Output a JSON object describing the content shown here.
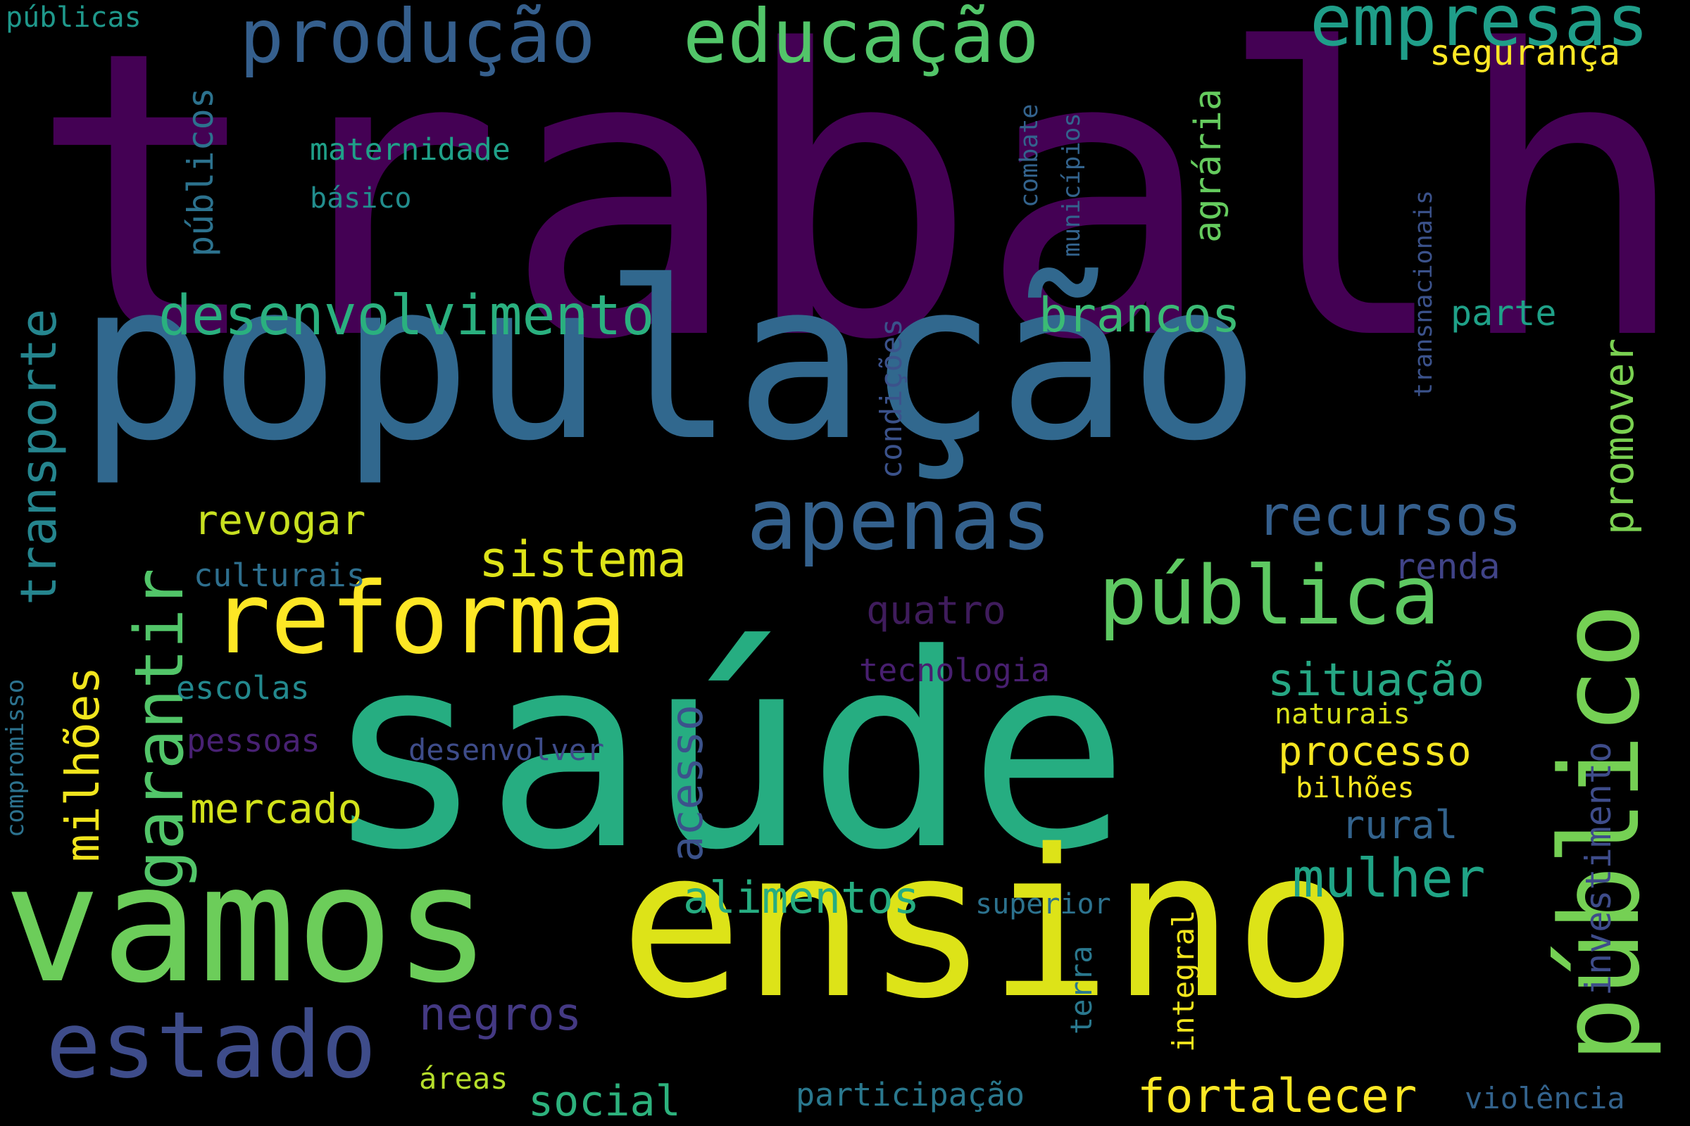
{
  "background_color": "#000000",
  "words": [
    {
      "text": "trabalho",
      "color": "#440154"
    },
    {
      "text": "população",
      "color": "#31688e"
    },
    {
      "text": "saúde",
      "color": "#26ad81"
    },
    {
      "text": "ensino",
      "color": "#dde318"
    },
    {
      "text": "vamos",
      "color": "#6ccd5a"
    },
    {
      "text": "público",
      "color": "#75d054"
    },
    {
      "text": "reforma",
      "color": "#fde725"
    },
    {
      "text": "estado",
      "color": "#3e4c8a"
    },
    {
      "text": "apenas",
      "color": "#34618d"
    },
    {
      "text": "pública",
      "color": "#5ec962"
    },
    {
      "text": "produção",
      "color": "#355f8d"
    },
    {
      "text": "educação",
      "color": "#52c569"
    },
    {
      "text": "empresas",
      "color": "#1f9e89"
    },
    {
      "text": "desenvolvimento",
      "color": "#2ab07f"
    },
    {
      "text": "garantir",
      "color": "#52c569"
    },
    {
      "text": "transporte",
      "color": "#25858e"
    },
    {
      "text": "sistema",
      "color": "#dde318"
    },
    {
      "text": "recursos",
      "color": "#355f8d"
    },
    {
      "text": "brancos",
      "color": "#3bbb75"
    },
    {
      "text": "situação",
      "color": "#26a784"
    },
    {
      "text": "processo",
      "color": "#f6e620"
    },
    {
      "text": "mulher",
      "color": "#20a486"
    },
    {
      "text": "negros",
      "color": "#443983"
    },
    {
      "text": "fortalecer",
      "color": "#fde725"
    },
    {
      "text": "alimentos",
      "color": "#26ad81"
    },
    {
      "text": "mercado",
      "color": "#d2e21b"
    },
    {
      "text": "milhões",
      "color": "#f1e51d"
    },
    {
      "text": "acesso",
      "color": "#3b528b"
    },
    {
      "text": "social",
      "color": "#2db27d"
    },
    {
      "text": "investimento",
      "color": "#3e4c8a"
    },
    {
      "text": "promover",
      "color": "#7ad151"
    },
    {
      "text": "revogar",
      "color": "#c8e020"
    },
    {
      "text": "agrária",
      "color": "#65cb5e"
    },
    {
      "text": "públicos",
      "color": "#2c728e"
    },
    {
      "text": "segurança",
      "color": "#fde725"
    },
    {
      "text": "parte",
      "color": "#1fa188"
    },
    {
      "text": "renda",
      "color": "#404387"
    },
    {
      "text": "quatro",
      "color": "#3f1c5c"
    },
    {
      "text": "rural",
      "color": "#33638d"
    },
    {
      "text": "maternidade",
      "color": "#1fa088"
    },
    {
      "text": "básico",
      "color": "#228d8d"
    },
    {
      "text": "culturais",
      "color": "#2e6f8e"
    },
    {
      "text": "escolas",
      "color": "#23898e"
    },
    {
      "text": "pessoas",
      "color": "#482173"
    },
    {
      "text": "desenvolver",
      "color": "#3e4c8a"
    },
    {
      "text": "tecnologia",
      "color": "#481f70"
    },
    {
      "text": "naturais",
      "color": "#d8e219"
    },
    {
      "text": "bilhões",
      "color": "#f8e621"
    },
    {
      "text": "superior",
      "color": "#2c728e"
    },
    {
      "text": "participação",
      "color": "#2a788e"
    },
    {
      "text": "áreas",
      "color": "#b5de2b"
    },
    {
      "text": "violência",
      "color": "#33638d"
    },
    {
      "text": "integral",
      "color": "#f1e51d"
    },
    {
      "text": "terra",
      "color": "#2a788e"
    },
    {
      "text": "condições",
      "color": "#3b528b"
    },
    {
      "text": "municípios",
      "color": "#33638d"
    },
    {
      "text": "combate",
      "color": "#33638d"
    },
    {
      "text": "transnacionais",
      "color": "#3b528b"
    },
    {
      "text": "compromisso",
      "color": "#2c728e"
    },
    {
      "text": "públicas",
      "color": "#1f988b"
    }
  ]
}
